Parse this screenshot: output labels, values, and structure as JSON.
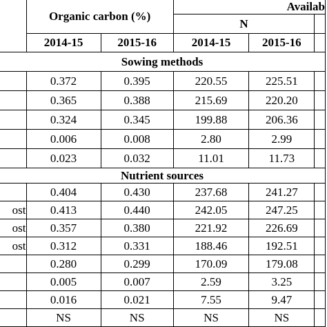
{
  "header": {
    "organic_carbon": "Organic carbon (%)",
    "available": "Availab",
    "n": "N",
    "years": [
      "2014-15",
      "2015-16",
      "2014-15",
      "2015-16"
    ]
  },
  "sections": [
    {
      "title": "Sowing methods",
      "rows": [
        {
          "values": [
            "0.372",
            "0.395",
            "220.55",
            "225.51"
          ]
        },
        {
          "values": [
            "0.365",
            "0.388",
            "215.69",
            "220.20"
          ]
        },
        {
          "values": [
            "0.324",
            "0.345",
            "199.88",
            "206.36"
          ]
        },
        {
          "values": [
            "0.006",
            "0.008",
            "2.80",
            "2.99"
          ]
        },
        {
          "values": [
            "0.023",
            "0.032",
            "11.01",
            "11.73"
          ]
        }
      ]
    },
    {
      "title": "Nutrient sources",
      "rows": [
        {
          "values": [
            "0.404",
            "0.430",
            "237.68",
            "241.27"
          ]
        },
        {
          "label": "ost",
          "values": [
            "0.413",
            "0.440",
            "242.05",
            "247.25"
          ]
        },
        {
          "label": "ost",
          "values": [
            "0.357",
            "0.380",
            "221.92",
            "226.69"
          ]
        },
        {
          "label": "ost",
          "values": [
            "0.312",
            "0.331",
            "188.46",
            "192.51"
          ]
        },
        {
          "values": [
            "0.280",
            "0.299",
            "170.09",
            "179.08"
          ]
        },
        {
          "values": [
            "0.005",
            "0.007",
            "2.59",
            "3.25"
          ]
        },
        {
          "values": [
            "0.016",
            "0.021",
            "7.55",
            "9.47"
          ]
        },
        {
          "values": [
            "NS",
            "NS",
            "NS",
            "NS"
          ]
        }
      ]
    }
  ]
}
